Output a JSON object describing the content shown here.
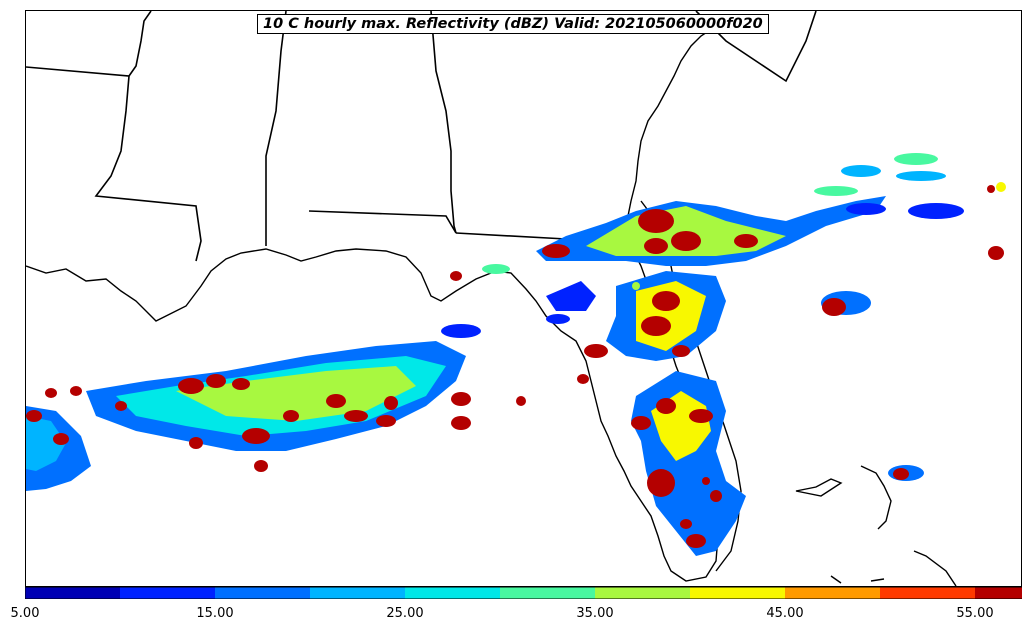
{
  "title": "10 C hourly max. Reflectivity (dBZ) Valid: 202105060000f020",
  "colorbar": {
    "ticks": [
      "5.00",
      "15.00",
      "25.00",
      "35.00",
      "45.00",
      "55.00"
    ],
    "colors": [
      "#0000b4",
      "#0022ff",
      "#0070ff",
      "#00b4ff",
      "#00e8e8",
      "#48f8a0",
      "#a8f840",
      "#f8f800",
      "#ff9a00",
      "#ff3a00",
      "#b40000",
      "#800000"
    ],
    "extend": "max"
  },
  "legend_levels_dbz": [
    5,
    10,
    15,
    20,
    25,
    30,
    35,
    40,
    45,
    50,
    55
  ]
}
